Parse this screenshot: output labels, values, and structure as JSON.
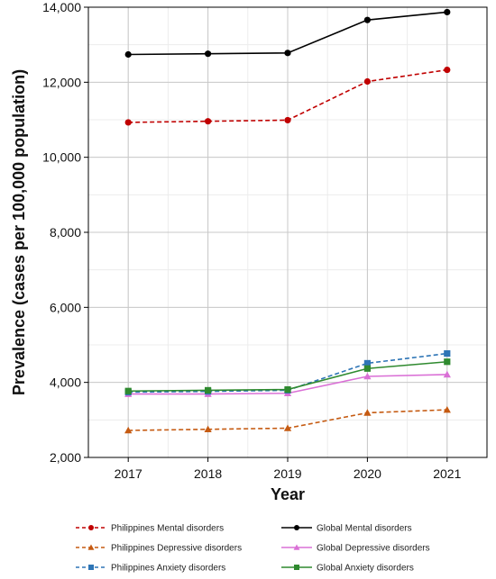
{
  "chart_data": {
    "type": "line",
    "xlabel": "Year",
    "ylabel": "Prevalence (cases per 100,000 population)",
    "x": [
      "2017",
      "2018",
      "2019",
      "2020",
      "2021"
    ],
    "ylim": [
      2000,
      14000
    ],
    "y_ticks": [
      "2,000",
      "4,000",
      "6,000",
      "8,000",
      "10,000",
      "12,000",
      "14,000"
    ],
    "grid": true,
    "legend_position": "bottom",
    "series": [
      {
        "name": "Philippines Mental disorders",
        "values": [
          10930,
          10960,
          10990,
          12020,
          12330
        ],
        "color": "#c00000",
        "marker": "circle",
        "dash": true
      },
      {
        "name": "Global Mental disorders",
        "values": [
          12740,
          12760,
          12780,
          13660,
          13870
        ],
        "color": "#000000",
        "marker": "circle",
        "dash": false
      },
      {
        "name": "Philippines Depressive disorders",
        "values": [
          2720,
          2750,
          2780,
          3190,
          3270
        ],
        "color": "#c55a11",
        "marker": "triangle",
        "dash": true
      },
      {
        "name": "Global Depressive disorders",
        "values": [
          3690,
          3690,
          3710,
          4160,
          4210
        ],
        "color": "#da70d6",
        "marker": "triangle",
        "dash": false
      },
      {
        "name": "Philippines Anxiety disorders",
        "values": [
          3740,
          3760,
          3790,
          4510,
          4770
        ],
        "color": "#2e75b6",
        "marker": "square",
        "dash": true
      },
      {
        "name": "Global Anxiety disorders",
        "values": [
          3770,
          3790,
          3810,
          4370,
          4550
        ],
        "color": "#2f8a2f",
        "marker": "square",
        "dash": false
      }
    ]
  }
}
